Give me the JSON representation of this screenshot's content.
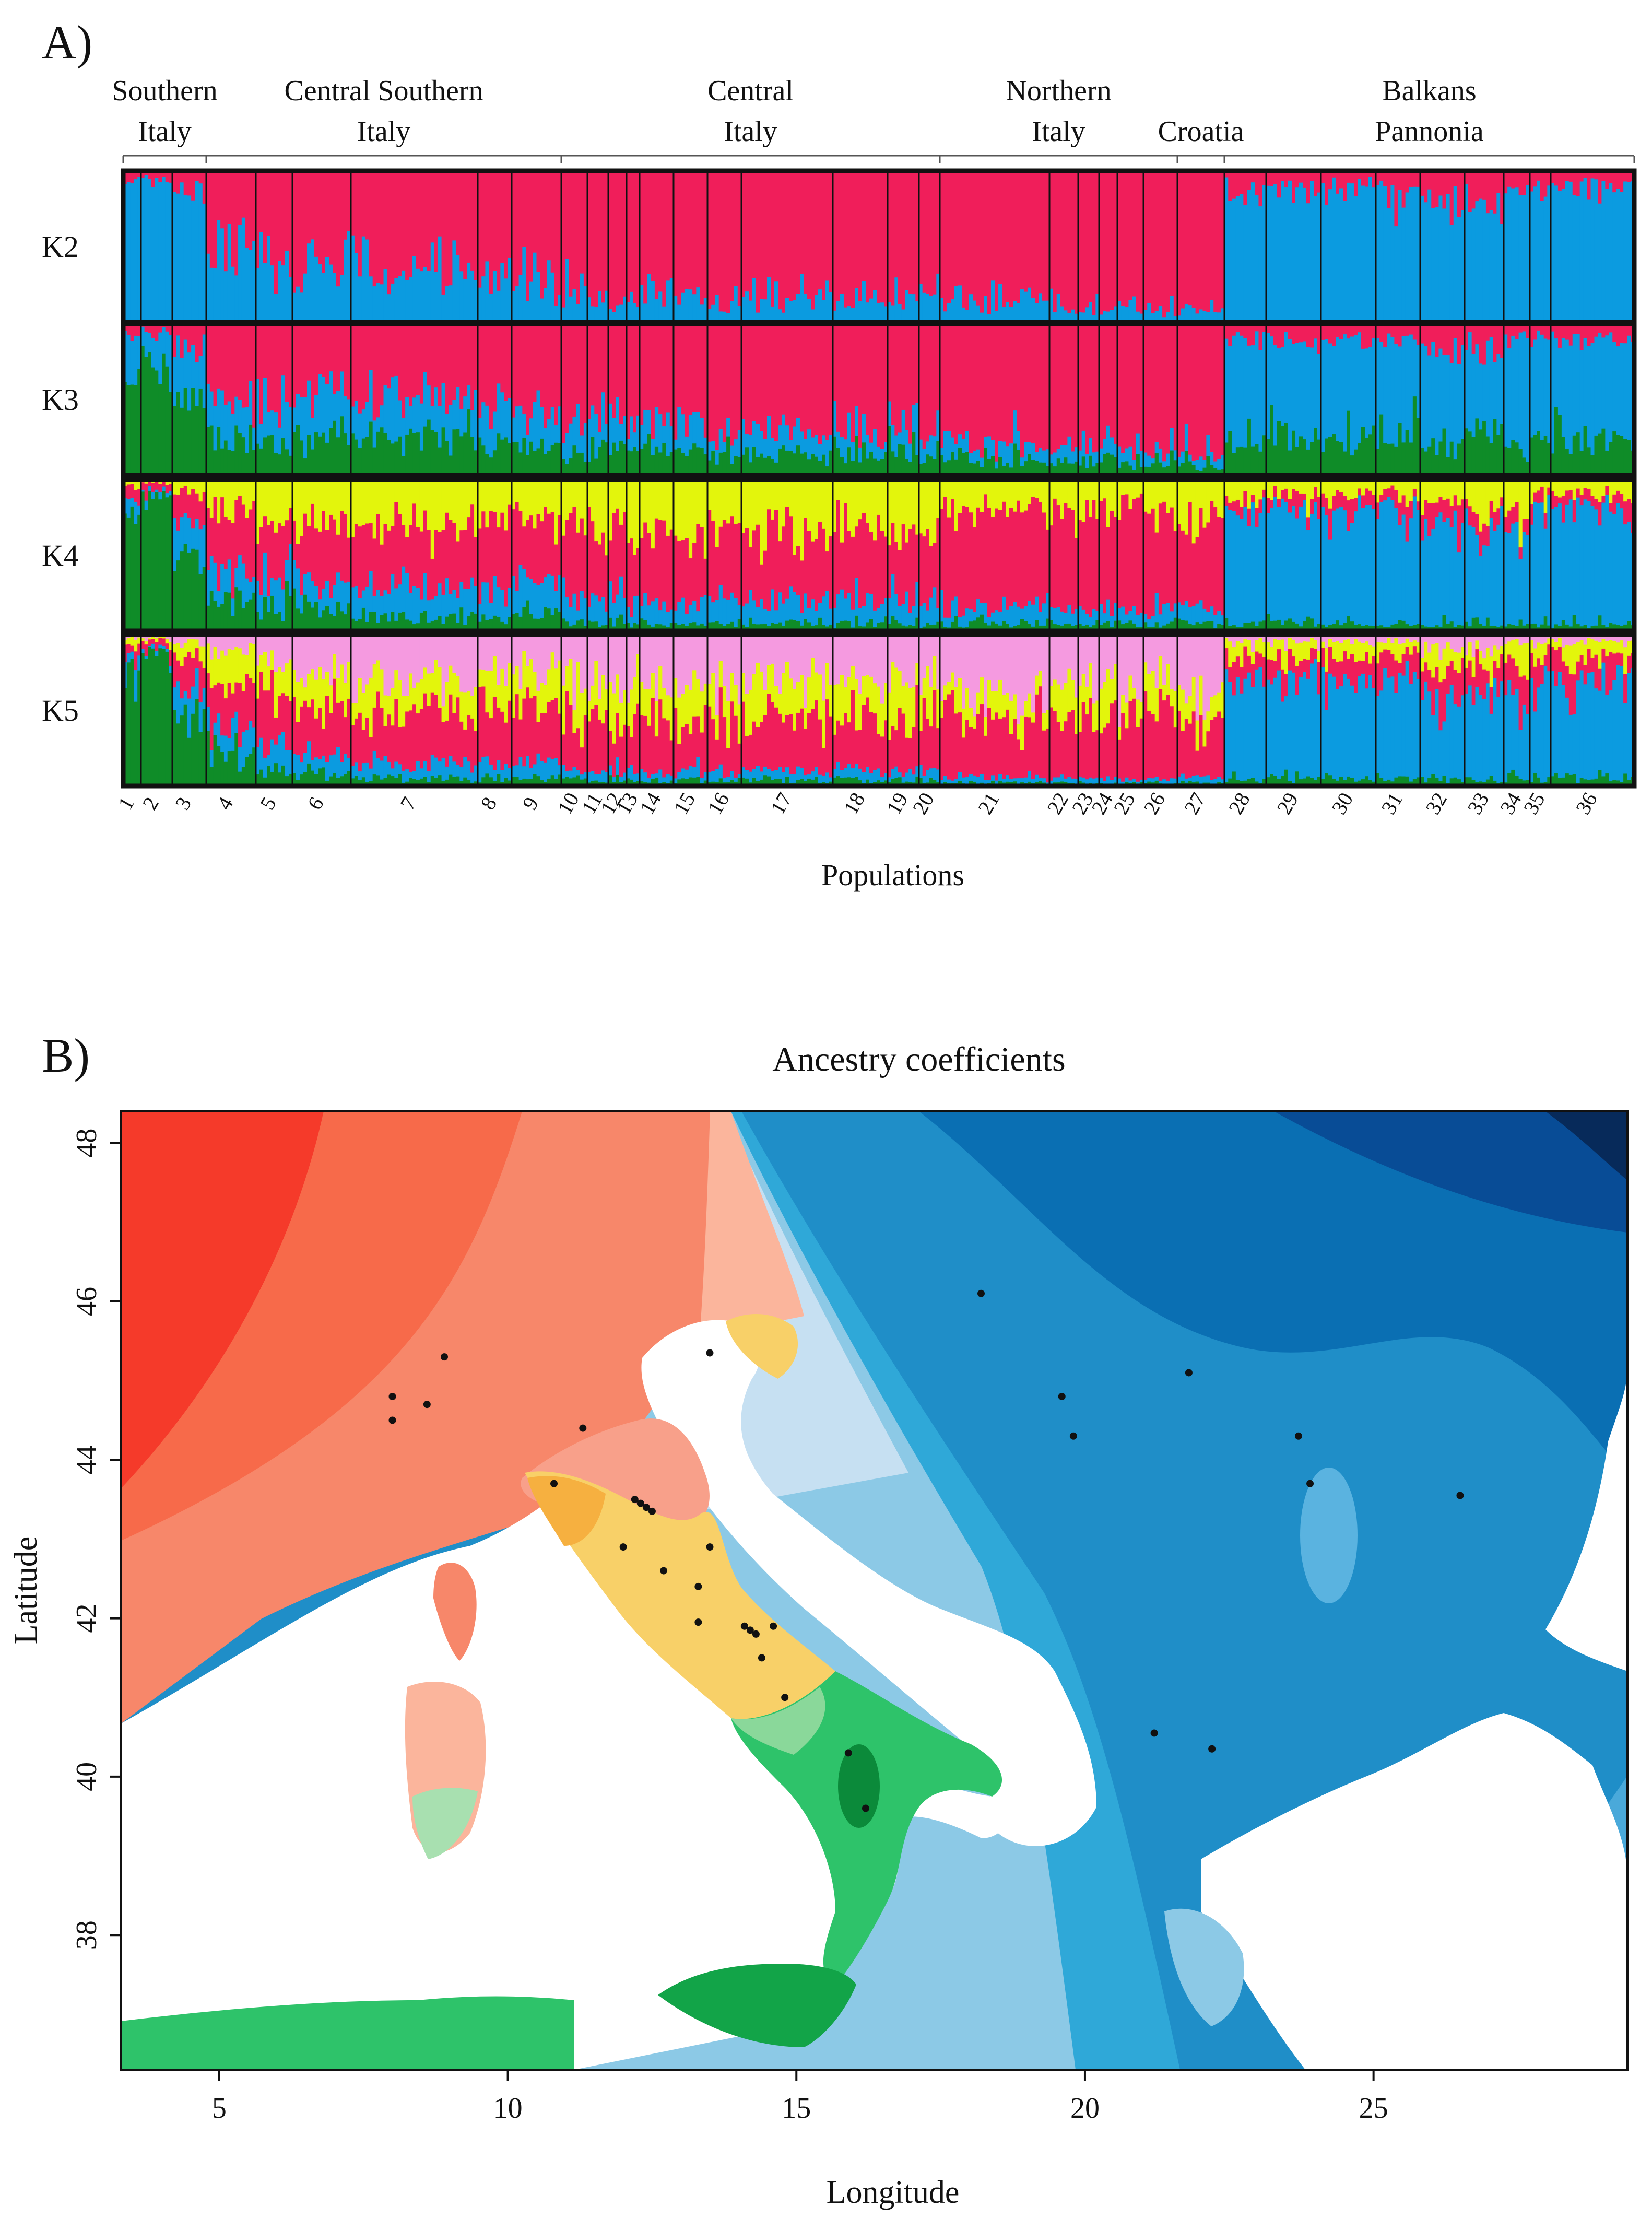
{
  "panel_a": {
    "label": "A)",
    "groups": [
      {
        "name": "Southern Italy",
        "lines": [
          "Southern",
          "Italy"
        ]
      },
      {
        "name": "Central Southern Italy",
        "lines": [
          "Central Southern",
          "Italy"
        ]
      },
      {
        "name": "Central Italy",
        "lines": [
          "Central",
          "Italy"
        ]
      },
      {
        "name": "Northern Italy",
        "lines": [
          "Northern",
          "Italy"
        ]
      },
      {
        "name": "Croatia",
        "lines": [
          "Croatia"
        ]
      },
      {
        "name": "Balkans Pannonia",
        "lines": [
          "Balkans",
          "Pannonia"
        ]
      }
    ],
    "rows": [
      "K2",
      "K3",
      "K4",
      "K5"
    ],
    "xlabel": "Populations"
  },
  "panel_b": {
    "label": "B)",
    "title": "Ancestry coefficients",
    "xlabel": "Longitude",
    "ylabel": "Latitude"
  },
  "colors": {
    "red": "#f01e5a",
    "blue": "#0b9be0",
    "green": "#0f8c28",
    "yellow": "#e3f50c",
    "pink": "#f59ae0"
  },
  "chart_data": [
    {
      "type": "bar",
      "subtype": "stacked ancestry barplot (STRUCTURE)",
      "title": "",
      "xlabel": "Populations",
      "ylabel": "",
      "ylim": [
        0,
        1
      ],
      "categories": [
        "1",
        "2",
        "3",
        "4",
        "5",
        "6",
        "7",
        "8",
        "9",
        "10",
        "11",
        "12",
        "13",
        "14",
        "15",
        "16",
        "17",
        "18",
        "19",
        "20",
        "21",
        "22",
        "23",
        "24",
        "25",
        "26",
        "27",
        "28",
        "29",
        "30",
        "31",
        "32",
        "33",
        "34",
        "35",
        "36"
      ],
      "group_spans": [
        {
          "group": "Southern Italy",
          "from": "1",
          "to": "3"
        },
        {
          "group": "Central Southern Italy",
          "from": "4",
          "to": "9"
        },
        {
          "group": "Central Italy",
          "from": "10",
          "to": "20"
        },
        {
          "group": "Northern Italy",
          "from": "21",
          "to": "26"
        },
        {
          "group": "Croatia",
          "from": "27",
          "to": "27"
        },
        {
          "group": "Balkans Pannonia",
          "from": "28",
          "to": "36"
        }
      ],
      "rows": [
        {
          "k": "K2",
          "series": [
            {
              "name": "red",
              "values": [
                0.05,
                0.05,
                0.15,
                0.55,
                0.6,
                0.6,
                0.65,
                0.7,
                0.72,
                0.78,
                0.8,
                0.82,
                0.8,
                0.85,
                0.85,
                0.88,
                0.85,
                0.87,
                0.85,
                0.85,
                0.88,
                0.9,
                0.9,
                0.88,
                0.9,
                0.92,
                0.93,
                0.12,
                0.12,
                0.1,
                0.15,
                0.25,
                0.2,
                0.12,
                0.1,
                0.1
              ]
            },
            {
              "name": "blue",
              "values": [
                0.95,
                0.95,
                0.85,
                0.45,
                0.4,
                0.4,
                0.35,
                0.3,
                0.28,
                0.22,
                0.2,
                0.18,
                0.2,
                0.15,
                0.15,
                0.12,
                0.15,
                0.13,
                0.15,
                0.15,
                0.12,
                0.1,
                0.1,
                0.12,
                0.1,
                0.08,
                0.07,
                0.88,
                0.88,
                0.9,
                0.85,
                0.75,
                0.8,
                0.88,
                0.9,
                0.9
              ]
            }
          ]
        },
        {
          "k": "K3",
          "series": [
            {
              "name": "red",
              "values": [
                0.1,
                0.05,
                0.15,
                0.5,
                0.45,
                0.45,
                0.5,
                0.55,
                0.55,
                0.6,
                0.62,
                0.62,
                0.65,
                0.7,
                0.72,
                0.75,
                0.7,
                0.72,
                0.7,
                0.75,
                0.8,
                0.8,
                0.82,
                0.8,
                0.82,
                0.84,
                0.85,
                0.1,
                0.12,
                0.1,
                0.12,
                0.2,
                0.15,
                0.1,
                0.08,
                0.1
              ]
            },
            {
              "name": "blue",
              "values": [
                0.3,
                0.2,
                0.35,
                0.25,
                0.3,
                0.3,
                0.25,
                0.25,
                0.25,
                0.22,
                0.2,
                0.2,
                0.18,
                0.15,
                0.13,
                0.12,
                0.15,
                0.13,
                0.15,
                0.12,
                0.1,
                0.1,
                0.1,
                0.1,
                0.1,
                0.08,
                0.08,
                0.65,
                0.6,
                0.65,
                0.6,
                0.6,
                0.6,
                0.7,
                0.7,
                0.68
              ]
            },
            {
              "name": "green",
              "values": [
                0.6,
                0.75,
                0.5,
                0.25,
                0.25,
                0.25,
                0.25,
                0.2,
                0.2,
                0.18,
                0.18,
                0.18,
                0.17,
                0.15,
                0.15,
                0.13,
                0.15,
                0.15,
                0.15,
                0.13,
                0.1,
                0.1,
                0.08,
                0.1,
                0.08,
                0.08,
                0.07,
                0.25,
                0.28,
                0.25,
                0.28,
                0.2,
                0.25,
                0.2,
                0.22,
                0.22
              ]
            }
          ]
        },
        {
          "k": "K4",
          "series": [
            {
              "name": "yellow",
              "values": [
                0.05,
                0.02,
                0.1,
                0.2,
                0.3,
                0.3,
                0.3,
                0.25,
                0.3,
                0.35,
                0.35,
                0.3,
                0.35,
                0.3,
                0.35,
                0.3,
                0.35,
                0.3,
                0.35,
                0.3,
                0.2,
                0.2,
                0.25,
                0.2,
                0.15,
                0.2,
                0.3,
                0.15,
                0.12,
                0.1,
                0.1,
                0.15,
                0.2,
                0.3,
                0.1,
                0.1
              ]
            },
            {
              "name": "red",
              "values": [
                0.1,
                0.05,
                0.2,
                0.4,
                0.35,
                0.35,
                0.4,
                0.45,
                0.4,
                0.45,
                0.45,
                0.5,
                0.45,
                0.5,
                0.45,
                0.5,
                0.45,
                0.5,
                0.45,
                0.5,
                0.65,
                0.65,
                0.6,
                0.65,
                0.7,
                0.65,
                0.55,
                0.1,
                0.1,
                0.1,
                0.1,
                0.15,
                0.1,
                0.1,
                0.1,
                0.1
              ]
            },
            {
              "name": "blue",
              "values": [
                0.1,
                0.03,
                0.2,
                0.2,
                0.2,
                0.2,
                0.2,
                0.2,
                0.2,
                0.15,
                0.15,
                0.15,
                0.15,
                0.15,
                0.15,
                0.15,
                0.15,
                0.15,
                0.15,
                0.15,
                0.1,
                0.1,
                0.1,
                0.1,
                0.1,
                0.1,
                0.1,
                0.7,
                0.72,
                0.75,
                0.75,
                0.65,
                0.65,
                0.55,
                0.75,
                0.75
              ]
            },
            {
              "name": "green",
              "values": [
                0.75,
                0.9,
                0.5,
                0.2,
                0.15,
                0.15,
                0.1,
                0.1,
                0.1,
                0.05,
                0.05,
                0.05,
                0.05,
                0.05,
                0.05,
                0.05,
                0.05,
                0.05,
                0.05,
                0.05,
                0.05,
                0.05,
                0.05,
                0.05,
                0.05,
                0.05,
                0.05,
                0.05,
                0.06,
                0.05,
                0.05,
                0.05,
                0.05,
                0.05,
                0.05,
                0.05
              ]
            }
          ]
        },
        {
          "k": "K5",
          "series": [
            {
              "name": "pink",
              "values": [
                0.02,
                0.02,
                0.05,
                0.1,
                0.2,
                0.25,
                0.3,
                0.25,
                0.25,
                0.3,
                0.35,
                0.3,
                0.3,
                0.35,
                0.3,
                0.35,
                0.3,
                0.3,
                0.3,
                0.25,
                0.4,
                0.35,
                0.35,
                0.3,
                0.35,
                0.3,
                0.4,
                0.05,
                0.05,
                0.05,
                0.05,
                0.1,
                0.1,
                0.05,
                0.05,
                0.05
              ]
            },
            {
              "name": "yellow",
              "values": [
                0.05,
                0.02,
                0.1,
                0.2,
                0.2,
                0.2,
                0.2,
                0.25,
                0.25,
                0.25,
                0.2,
                0.25,
                0.25,
                0.2,
                0.25,
                0.2,
                0.25,
                0.25,
                0.25,
                0.25,
                0.15,
                0.2,
                0.2,
                0.2,
                0.15,
                0.2,
                0.2,
                0.1,
                0.1,
                0.1,
                0.1,
                0.12,
                0.12,
                0.15,
                0.1,
                0.1
              ]
            },
            {
              "name": "red",
              "values": [
                0.08,
                0.04,
                0.2,
                0.35,
                0.35,
                0.35,
                0.35,
                0.35,
                0.35,
                0.35,
                0.35,
                0.35,
                0.35,
                0.35,
                0.35,
                0.35,
                0.35,
                0.35,
                0.35,
                0.4,
                0.4,
                0.4,
                0.4,
                0.45,
                0.45,
                0.45,
                0.35,
                0.15,
                0.15,
                0.15,
                0.15,
                0.2,
                0.2,
                0.2,
                0.15,
                0.15
              ]
            },
            {
              "name": "blue",
              "values": [
                0.1,
                0.02,
                0.2,
                0.15,
                0.15,
                0.12,
                0.1,
                0.1,
                0.1,
                0.06,
                0.06,
                0.06,
                0.06,
                0.06,
                0.06,
                0.06,
                0.06,
                0.06,
                0.06,
                0.06,
                0.03,
                0.03,
                0.03,
                0.03,
                0.03,
                0.03,
                0.03,
                0.65,
                0.65,
                0.65,
                0.65,
                0.53,
                0.53,
                0.55,
                0.65,
                0.65
              ]
            },
            {
              "name": "green",
              "values": [
                0.75,
                0.9,
                0.45,
                0.2,
                0.1,
                0.08,
                0.05,
                0.05,
                0.05,
                0.04,
                0.04,
                0.04,
                0.04,
                0.04,
                0.04,
                0.04,
                0.04,
                0.04,
                0.04,
                0.04,
                0.02,
                0.02,
                0.02,
                0.02,
                0.02,
                0.02,
                0.02,
                0.05,
                0.05,
                0.05,
                0.05,
                0.05,
                0.05,
                0.05,
                0.05,
                0.05
              ]
            }
          ]
        }
      ]
    },
    {
      "type": "heatmap",
      "subtype": "interpolated ancestry-coefficient map",
      "title": "Ancestry coefficients",
      "xlabel": "Longitude",
      "ylabel": "Latitude",
      "xlim": [
        3.3,
        29.4
      ],
      "ylim": [
        36.3,
        48.4
      ],
      "xticks": [
        5,
        10,
        15,
        20,
        25
      ],
      "yticks": [
        38,
        40,
        42,
        44,
        46,
        48
      ],
      "clusters": [
        {
          "name": "red",
          "region": "North-western Italy / France"
        },
        {
          "name": "yellow",
          "region": "Central Italy"
        },
        {
          "name": "green",
          "region": "Southern Italy, Sicily, North Africa"
        },
        {
          "name": "blue",
          "region": "Balkans, Pannonia, Greece"
        }
      ],
      "sampling_sites": [
        {
          "lon": 8.0,
          "lat": 44.8
        },
        {
          "lon": 8.0,
          "lat": 44.5
        },
        {
          "lon": 8.6,
          "lat": 44.7
        },
        {
          "lon": 8.9,
          "lat": 45.3
        },
        {
          "lon": 11.3,
          "lat": 44.4
        },
        {
          "lon": 10.8,
          "lat": 43.7
        },
        {
          "lon": 12.2,
          "lat": 43.5
        },
        {
          "lon": 12.3,
          "lat": 43.45
        },
        {
          "lon": 12.4,
          "lat": 43.4
        },
        {
          "lon": 12.5,
          "lat": 43.35
        },
        {
          "lon": 12.0,
          "lat": 42.9
        },
        {
          "lon": 12.7,
          "lat": 42.6
        },
        {
          "lon": 13.5,
          "lat": 42.9
        },
        {
          "lon": 13.3,
          "lat": 42.4
        },
        {
          "lon": 13.3,
          "lat": 41.95
        },
        {
          "lon": 14.1,
          "lat": 41.9
        },
        {
          "lon": 14.2,
          "lat": 41.85
        },
        {
          "lon": 14.3,
          "lat": 41.8
        },
        {
          "lon": 14.6,
          "lat": 41.9
        },
        {
          "lon": 14.4,
          "lat": 41.5
        },
        {
          "lon": 14.8,
          "lat": 41.0
        },
        {
          "lon": 15.9,
          "lat": 40.3
        },
        {
          "lon": 16.2,
          "lat": 39.6
        },
        {
          "lon": 13.5,
          "lat": 45.35
        },
        {
          "lon": 18.2,
          "lat": 46.1
        },
        {
          "lon": 19.6,
          "lat": 44.8
        },
        {
          "lon": 19.8,
          "lat": 44.3
        },
        {
          "lon": 21.8,
          "lat": 45.1
        },
        {
          "lon": 23.7,
          "lat": 44.3
        },
        {
          "lon": 23.9,
          "lat": 43.7
        },
        {
          "lon": 26.5,
          "lat": 43.55
        },
        {
          "lon": 21.2,
          "lat": 40.55
        },
        {
          "lon": 22.2,
          "lat": 40.35
        }
      ]
    }
  ]
}
